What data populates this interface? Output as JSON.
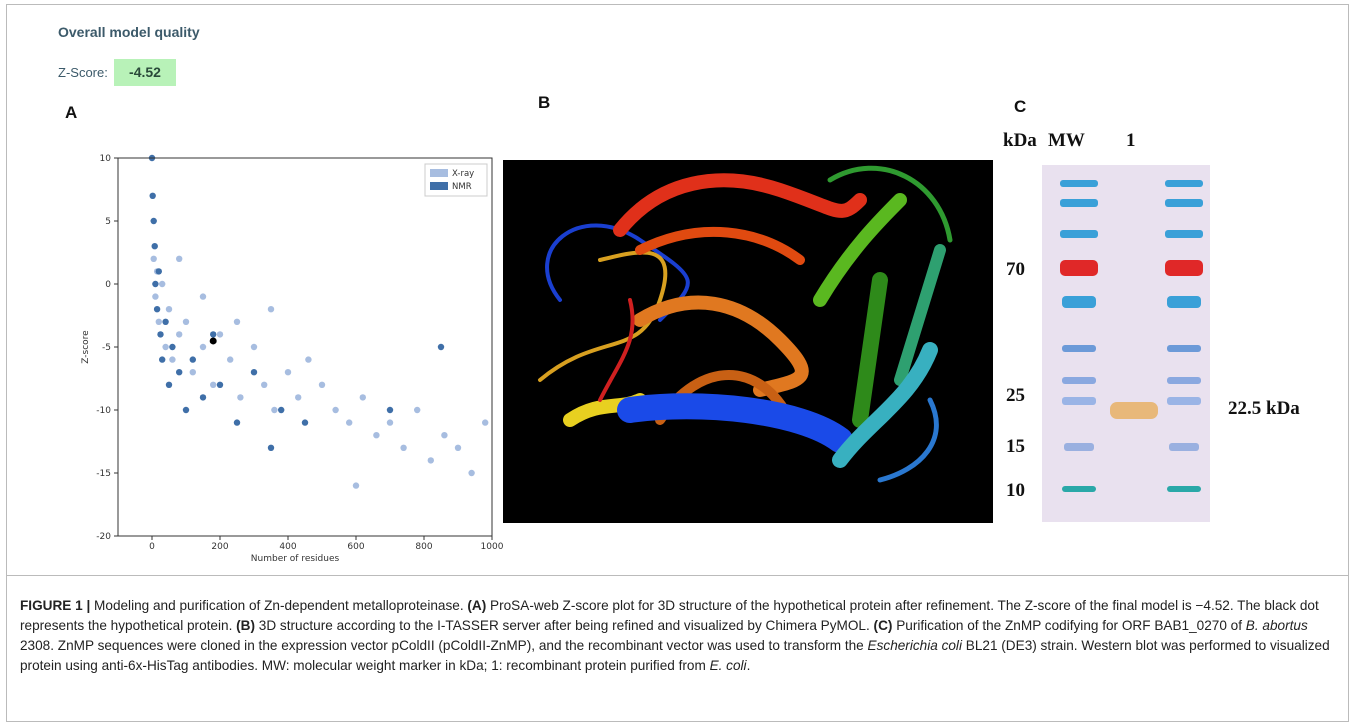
{
  "header": {
    "title": "Overall model quality",
    "z_label": "Z-Score:",
    "z_value": "-4.52"
  },
  "panels": {
    "a": "A",
    "b": "B",
    "c": "C"
  },
  "chart_data": {
    "type": "scatter",
    "xlabel": "Number of residues",
    "ylabel": "Z-score",
    "xlim": [
      -100,
      1000
    ],
    "ylim": [
      -20,
      10
    ],
    "xticks": [
      0,
      200,
      400,
      600,
      800,
      1000
    ],
    "yticks": [
      -20,
      -15,
      -10,
      -5,
      0,
      5,
      10
    ],
    "legend": "upper right",
    "series": [
      {
        "name": "X-ray",
        "color": "#a7bde0",
        "x": [
          5,
          10,
          15,
          20,
          30,
          40,
          50,
          60,
          80,
          100,
          120,
          150,
          180,
          200,
          230,
          260,
          300,
          330,
          360,
          400,
          430,
          460,
          500,
          540,
          580,
          620,
          660,
          700,
          740,
          780,
          820,
          860,
          900,
          940,
          980,
          350,
          600,
          250,
          150,
          80
        ],
        "values": [
          2,
          -1,
          1,
          -3,
          0,
          -5,
          -2,
          -6,
          -4,
          -3,
          -7,
          -5,
          -8,
          -4,
          -6,
          -9,
          -5,
          -8,
          -10,
          -7,
          -9,
          -6,
          -8,
          -10,
          -11,
          -9,
          -12,
          -11,
          -13,
          -10,
          -14,
          -12,
          -13,
          -15,
          -11,
          -2,
          -16,
          -3,
          -1,
          2
        ]
      },
      {
        "name": "NMR",
        "color": "#3f6fa8",
        "x": [
          0,
          2,
          5,
          8,
          10,
          15,
          20,
          25,
          30,
          40,
          50,
          60,
          80,
          100,
          120,
          150,
          180,
          200,
          250,
          300,
          350,
          380,
          450,
          700,
          850
        ],
        "values": [
          10,
          7,
          5,
          3,
          0,
          -2,
          1,
          -4,
          -6,
          -3,
          -8,
          -5,
          -7,
          -10,
          -6,
          -9,
          -4,
          -8,
          -11,
          -7,
          -13,
          -10,
          -11,
          -10,
          -5
        ]
      }
    ],
    "highlight": {
      "x": 180,
      "y": -4.52,
      "color": "#000000"
    }
  },
  "gel": {
    "header_kda": "kDa",
    "header_mw": "MW",
    "header_lane": "1",
    "markers": [
      70,
      25,
      15,
      10
    ],
    "band_label": "22.5 kDa"
  },
  "caption": [
    "FIGURE 1 |",
    " Modeling and purification of Zn-dependent metalloproteinase. ",
    "(A)",
    " ProSA-web Z-score plot for 3D structure of the hypothetical protein after refinement. The Z-score of the final model is −4.52. The black dot represents the hypothetical protein. ",
    "(B)",
    " 3D structure according to the I-TASSER server after being refined and visualized by Chimera PyMOL. ",
    "(C)",
    " Purification of the ZnMP codifying for ORF BAB1_0270 of ",
    "B. abortus",
    " 2308. ZnMP sequences were cloned in the expression vector pColdII (pColdII-ZnMP), and the recombinant vector was used to transform the ",
    "Escherichia coli",
    " BL21 (DE3) strain. Western blot was performed to visualized protein using anti-6x-HisTag antibodies. MW: molecular weight marker in kDa; 1: recombinant protein purified from ",
    "E. coli",
    "."
  ]
}
